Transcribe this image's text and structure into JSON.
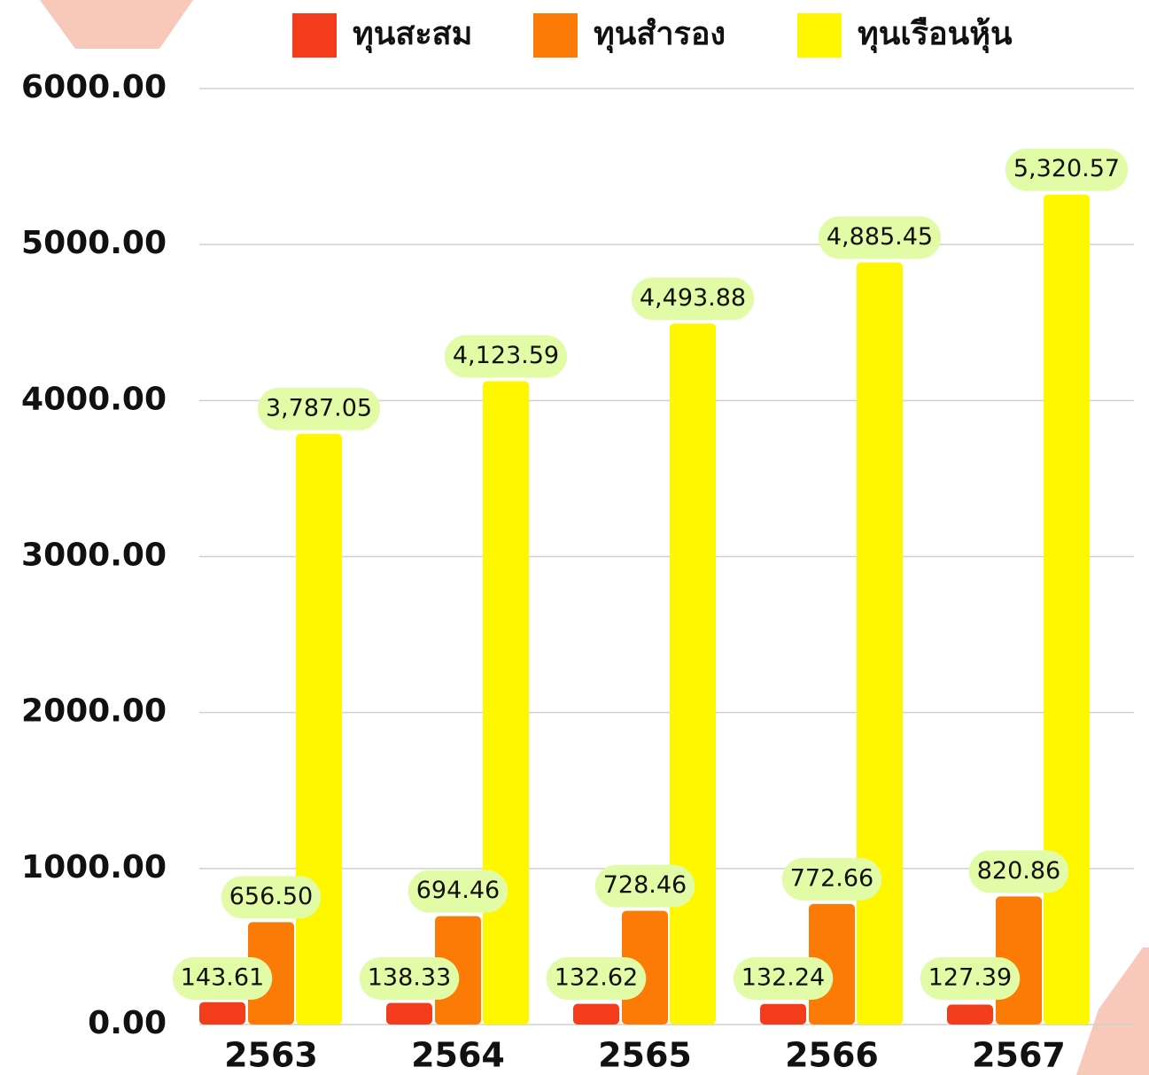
{
  "chart_data": {
    "type": "bar",
    "categories": [
      "2563",
      "2564",
      "2565",
      "2566",
      "2567"
    ],
    "series": [
      {
        "name": "ทุนสะสม",
        "color": "#f23c1c",
        "values": [
          143.61,
          138.33,
          132.62,
          132.24,
          127.39
        ],
        "value_labels": [
          "143.61",
          "138.33",
          "132.62",
          "132.24",
          "127.39"
        ]
      },
      {
        "name": "ทุนสำรอง",
        "color": "#fb7b06",
        "values": [
          656.5,
          694.46,
          728.46,
          772.66,
          820.86
        ],
        "value_labels": [
          "656.50",
          "694.46",
          "728.46",
          "772.66",
          "820.86"
        ]
      },
      {
        "name": "ทุนเรือนหุ้น",
        "color": "#fff700",
        "values": [
          3787.05,
          4123.59,
          4493.88,
          4885.45,
          5320.57
        ],
        "value_labels": [
          "3,787.05",
          "4,123.59",
          "4,493.88",
          "4,885.45",
          "5,320.57"
        ]
      }
    ],
    "ylim": [
      0,
      6000
    ],
    "yticks": [
      {
        "value": 0,
        "label": "0.00"
      },
      {
        "value": 1000,
        "label": "1000.00"
      },
      {
        "value": 2000,
        "label": "2000.00"
      },
      {
        "value": 3000,
        "label": "3000.00"
      },
      {
        "value": 4000,
        "label": "4000.00"
      },
      {
        "value": 5000,
        "label": "5000.00"
      },
      {
        "value": 6000,
        "label": "6000.00"
      }
    ],
    "grid": true
  }
}
